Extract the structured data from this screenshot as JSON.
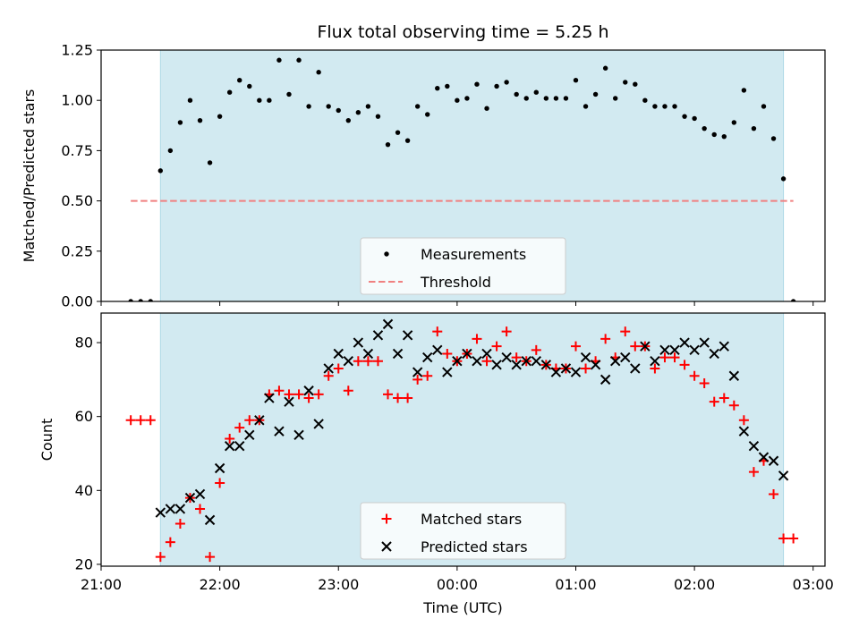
{
  "figure": {
    "title": "Flux total observing time = 5.25 h"
  },
  "chart_data": [
    {
      "type": "scatter",
      "title": "Flux total observing time = 5.25 h",
      "xlabel": "",
      "ylabel": "Matched/Predicted stars",
      "xlim": [
        "21:00",
        "03:06"
      ],
      "ylim": [
        0,
        1.25
      ],
      "yticks": [
        "0.00",
        "0.25",
        "0.50",
        "0.75",
        "1.00",
        "1.25"
      ],
      "observing_window": {
        "start": "21:30",
        "end": "02:45",
        "color": "#add8e6"
      },
      "legend_position": "bottom-center",
      "series": [
        {
          "name": "Measurements",
          "marker": "dot",
          "color": "#000000",
          "x": [
            "21:15",
            "21:20",
            "21:25",
            "21:30",
            "21:35",
            "21:40",
            "21:45",
            "21:50",
            "21:55",
            "22:00",
            "22:05",
            "22:10",
            "22:15",
            "22:20",
            "22:25",
            "22:30",
            "22:35",
            "22:40",
            "22:45",
            "22:50",
            "22:55",
            "23:00",
            "23:05",
            "23:10",
            "23:15",
            "23:20",
            "23:25",
            "23:30",
            "23:35",
            "23:40",
            "23:45",
            "23:50",
            "23:55",
            "00:00",
            "00:05",
            "00:10",
            "00:15",
            "00:20",
            "00:25",
            "00:30",
            "00:35",
            "00:40",
            "00:45",
            "00:50",
            "00:55",
            "01:00",
            "01:05",
            "01:10",
            "01:15",
            "01:20",
            "01:25",
            "01:30",
            "01:35",
            "01:40",
            "01:45",
            "01:50",
            "01:55",
            "02:00",
            "02:05",
            "02:10",
            "02:15",
            "02:20",
            "02:25",
            "02:30",
            "02:35",
            "02:40",
            "02:45",
            "02:50"
          ],
          "y": [
            0,
            0,
            0,
            0.65,
            0.75,
            0.89,
            1.0,
            0.9,
            0.69,
            0.92,
            1.04,
            1.1,
            1.07,
            1.0,
            1.0,
            1.2,
            1.03,
            1.2,
            0.97,
            1.14,
            0.97,
            0.95,
            0.9,
            0.94,
            0.97,
            0.92,
            0.78,
            0.84,
            0.8,
            0.97,
            0.93,
            1.06,
            1.07,
            1.0,
            1.01,
            1.08,
            0.96,
            1.07,
            1.09,
            1.03,
            1.01,
            1.04,
            1.01,
            1.01,
            1.01,
            1.1,
            0.97,
            1.03,
            1.16,
            1.01,
            1.09,
            1.08,
            1.0,
            0.97,
            0.97,
            0.97,
            0.92,
            0.91,
            0.86,
            0.83,
            0.82,
            0.89,
            1.05,
            0.86,
            0.97,
            0.81,
            0.61,
            0
          ]
        },
        {
          "name": "Threshold",
          "style": "dashed",
          "color": "#f08080",
          "x": [
            "21:15",
            "02:50"
          ],
          "y": [
            0.5,
            0.5
          ]
        }
      ]
    },
    {
      "type": "scatter",
      "title": "",
      "xlabel": "Time (UTC)",
      "ylabel": "Count",
      "xlim": [
        "21:00",
        "03:06"
      ],
      "ylim": [
        19.5,
        88
      ],
      "yticks": [
        "20",
        "40",
        "60",
        "80"
      ],
      "xticks": [
        "21:00",
        "22:00",
        "23:00",
        "00:00",
        "01:00",
        "02:00",
        "03:00"
      ],
      "observing_window": {
        "start": "21:30",
        "end": "02:45",
        "color": "#add8e6"
      },
      "legend_position": "bottom-center",
      "series": [
        {
          "name": "Matched stars",
          "marker": "plus",
          "color": "#ff0000",
          "x": [
            "21:15",
            "21:20",
            "21:25",
            "21:30",
            "21:35",
            "21:40",
            "21:45",
            "21:50",
            "21:55",
            "22:00",
            "22:05",
            "22:10",
            "22:15",
            "22:20",
            "22:25",
            "22:30",
            "22:35",
            "22:40",
            "22:45",
            "22:50",
            "22:55",
            "23:00",
            "23:05",
            "23:10",
            "23:15",
            "23:20",
            "23:25",
            "23:30",
            "23:35",
            "23:40",
            "23:45",
            "23:50",
            "23:55",
            "00:00",
            "00:05",
            "00:10",
            "00:15",
            "00:20",
            "00:25",
            "00:30",
            "00:35",
            "00:40",
            "00:45",
            "00:50",
            "00:55",
            "01:00",
            "01:05",
            "01:10",
            "01:15",
            "01:20",
            "01:25",
            "01:30",
            "01:35",
            "01:40",
            "01:45",
            "01:50",
            "01:55",
            "02:00",
            "02:05",
            "02:10",
            "02:15",
            "02:20",
            "02:25",
            "02:30",
            "02:35",
            "02:40",
            "02:45",
            "02:50"
          ],
          "y": [
            59,
            59,
            59,
            22,
            26,
            31,
            38,
            35,
            22,
            42,
            54,
            57,
            59,
            59,
            66,
            67,
            66,
            66,
            65,
            66,
            71,
            73,
            67,
            75,
            75,
            75,
            66,
            65,
            65,
            70,
            71,
            83,
            77,
            75,
            77,
            81,
            75,
            79,
            83,
            76,
            75,
            78,
            74,
            73,
            73,
            79,
            73,
            75,
            81,
            76,
            83,
            79,
            79,
            73,
            76,
            76,
            74,
            71,
            69,
            64,
            65,
            63,
            59,
            45,
            48,
            39,
            27,
            27
          ]
        },
        {
          "name": "Predicted stars",
          "marker": "cross",
          "color": "#000000",
          "x": [
            "21:30",
            "21:35",
            "21:40",
            "21:45",
            "21:50",
            "21:55",
            "22:00",
            "22:05",
            "22:10",
            "22:15",
            "22:20",
            "22:25",
            "22:30",
            "22:35",
            "22:40",
            "22:45",
            "22:50",
            "22:55",
            "23:00",
            "23:05",
            "23:10",
            "23:15",
            "23:20",
            "23:25",
            "23:30",
            "23:35",
            "23:40",
            "23:45",
            "23:50",
            "23:55",
            "00:00",
            "00:05",
            "00:10",
            "00:15",
            "00:20",
            "00:25",
            "00:30",
            "00:35",
            "00:40",
            "00:45",
            "00:50",
            "00:55",
            "01:00",
            "01:05",
            "01:10",
            "01:15",
            "01:20",
            "01:25",
            "01:30",
            "01:35",
            "01:40",
            "01:45",
            "01:50",
            "01:55",
            "02:00",
            "02:05",
            "02:10",
            "02:15",
            "02:20",
            "02:25",
            "02:30",
            "02:35",
            "02:40",
            "02:45"
          ],
          "y": [
            34,
            35,
            35,
            38,
            39,
            32,
            46,
            52,
            52,
            55,
            59,
            65,
            56,
            64,
            55,
            67,
            58,
            73,
            77,
            75,
            80,
            77,
            82,
            85,
            77,
            82,
            72,
            76,
            78,
            72,
            75,
            77,
            75,
            77,
            74,
            76,
            74,
            75,
            75,
            74,
            72,
            73,
            72,
            76,
            74,
            70,
            75,
            76,
            73,
            79,
            75,
            78,
            78,
            80,
            78,
            80,
            77,
            79,
            71,
            56,
            52,
            49,
            48,
            44
          ]
        }
      ]
    }
  ]
}
